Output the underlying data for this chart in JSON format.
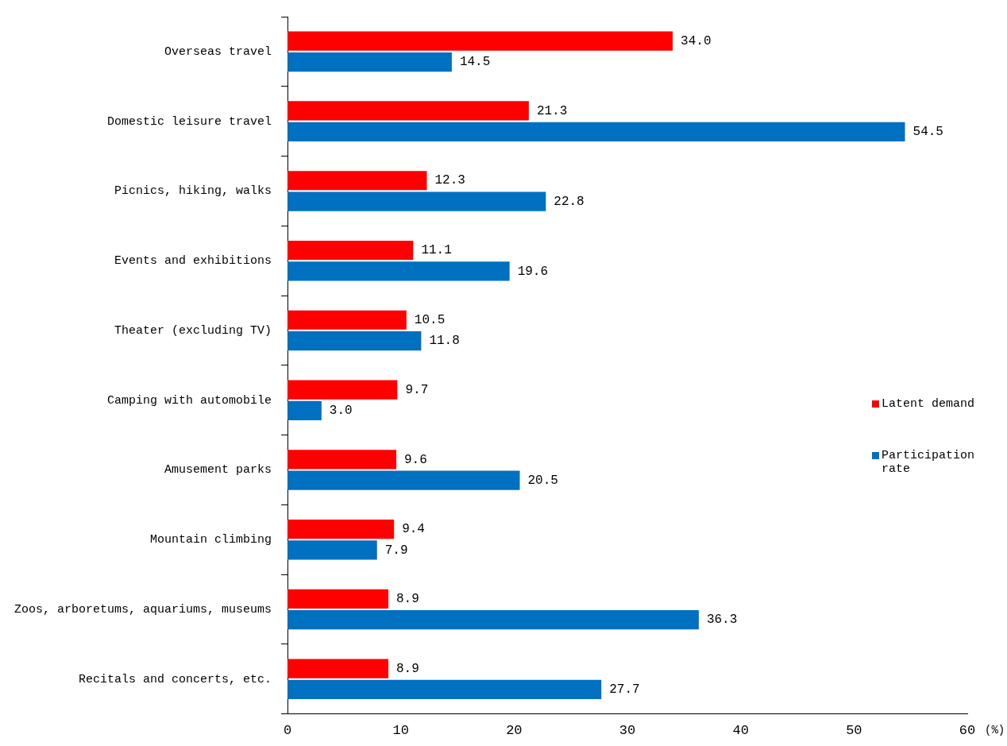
{
  "chart_data": {
    "type": "bar",
    "orientation": "horizontal",
    "xlabel": "(%)",
    "categories": [
      "Overseas travel",
      "Domestic leisure travel",
      "Picnics, hiking, walks",
      "Events and exhibitions",
      "Theater (excluding TV)",
      "Camping with automobile",
      "Amusement parks",
      "Mountain climbing",
      "Zoos, arboretums, aquariums, museums",
      "Recitals and concerts, etc."
    ],
    "series": [
      {
        "name": "Latent demand",
        "color": "#ff0000",
        "values": [
          34.0,
          21.3,
          12.3,
          11.1,
          10.5,
          9.7,
          9.6,
          9.4,
          8.9,
          8.9
        ],
        "value_labels": [
          "34.0",
          "21.3",
          "12.3",
          "11.1",
          "10.5",
          "9.7",
          "9.6",
          "9.4",
          "8.9",
          "8.9"
        ]
      },
      {
        "name": "Participation rate",
        "color": "#0070c0",
        "values": [
          14.5,
          54.5,
          22.8,
          19.6,
          11.8,
          3.0,
          20.5,
          7.9,
          36.3,
          27.7
        ],
        "value_labels": [
          "14.5",
          "54.5",
          "22.8",
          "19.6",
          "11.8",
          "3.0",
          "20.5",
          "7.9",
          "36.3",
          "27.7"
        ]
      }
    ],
    "xlim": [
      0,
      60
    ],
    "xticks": [
      0,
      10,
      20,
      30,
      40,
      50,
      60
    ],
    "grid": false,
    "legend": "right",
    "data_labels": true
  }
}
